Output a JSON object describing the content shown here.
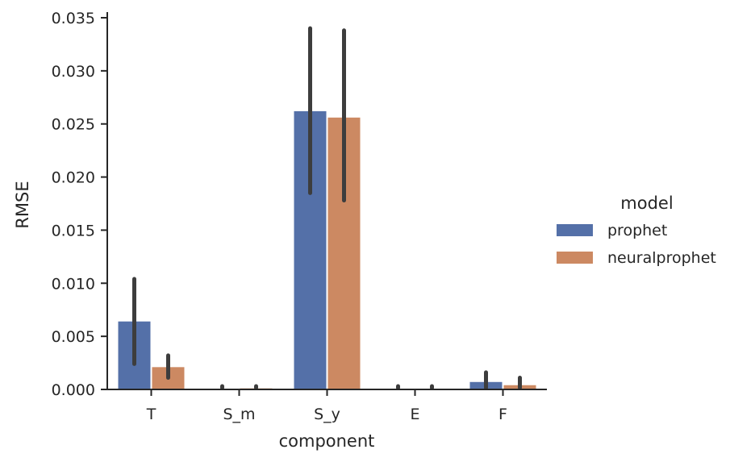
{
  "chart_data": {
    "type": "bar",
    "xlabel": "component",
    "ylabel": "RMSE",
    "categories": [
      "T",
      "S_m",
      "S_y",
      "E",
      "F"
    ],
    "ylim": [
      0,
      0.0355
    ],
    "yticks": [
      "0.000",
      "0.005",
      "0.010",
      "0.015",
      "0.020",
      "0.025",
      "0.030",
      "0.035"
    ],
    "ytick_values": [
      0,
      0.005,
      0.01,
      0.015,
      0.02,
      0.025,
      0.03,
      0.035
    ],
    "legend_title": "model",
    "legend_position": "right",
    "grid": false,
    "series": [
      {
        "name": "prophet",
        "color": "#5470a8",
        "values": [
          0.0064,
          0.0,
          0.0262,
          0.0,
          0.0007
        ],
        "ci_low": [
          0.0024,
          0.0,
          0.0185,
          0.0,
          0.0
        ],
        "ci_high": [
          0.0104,
          0.0001,
          0.034,
          0.0001,
          0.0016
        ]
      },
      {
        "name": "neuralprophet",
        "color": "#cc8962",
        "values": [
          0.0021,
          0.0001,
          0.0256,
          0.0,
          0.0004
        ],
        "ci_low": [
          0.0011,
          0.0,
          0.0178,
          0.0,
          0.0
        ],
        "ci_high": [
          0.0032,
          0.0003,
          0.0338,
          0.0001,
          0.0011
        ]
      }
    ]
  }
}
